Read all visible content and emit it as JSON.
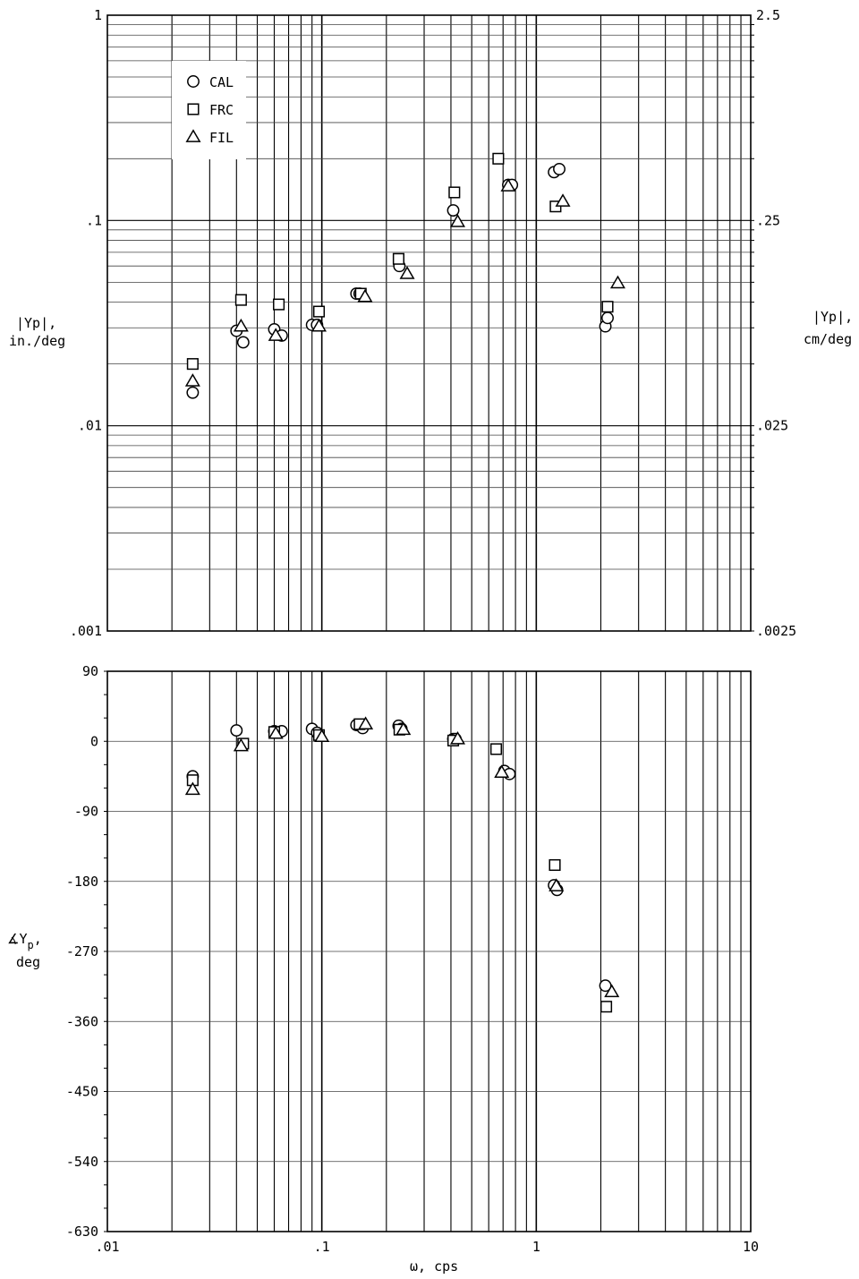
{
  "chart_data": [
    {
      "type": "scatter",
      "panel": "magnitude",
      "xscale": "log",
      "yscale": "log",
      "xlim": [
        0.01,
        10
      ],
      "ylim": [
        0.001,
        1
      ],
      "y2lim": [
        0.0025,
        2.5
      ],
      "grid": true,
      "legend_position": "top-left",
      "ylabel": "|Yp|, in./deg",
      "ylabel_main": "|Yp|,",
      "ylabel_unit": "in./deg",
      "y2label": "|Yp|, cm/deg",
      "y2label_main": "|Yp|,",
      "y2label_unit": "cm/deg",
      "ytick_labels": [
        "1",
        ".1",
        ".01",
        ".001"
      ],
      "y2tick_labels": [
        "2.5",
        ".25",
        ".025",
        ".0025"
      ],
      "series": [
        {
          "name": "CAL",
          "marker": "circle",
          "points": [
            [
              0.025,
              0.0145
            ],
            [
              0.04,
              0.029
            ],
            [
              0.043,
              0.0255
            ],
            [
              0.06,
              0.0295
            ],
            [
              0.065,
              0.0275
            ],
            [
              0.09,
              0.031
            ],
            [
              0.095,
              0.031
            ],
            [
              0.145,
              0.044
            ],
            [
              0.15,
              0.044
            ],
            [
              0.23,
              0.06
            ],
            [
              0.41,
              0.112
            ],
            [
              0.74,
              0.149
            ],
            [
              0.77,
              0.149
            ],
            [
              1.21,
              0.172
            ],
            [
              1.28,
              0.178
            ],
            [
              2.1,
              0.0305
            ],
            [
              2.15,
              0.0335
            ]
          ]
        },
        {
          "name": "FRC",
          "marker": "square",
          "points": [
            [
              0.025,
              0.02
            ],
            [
              0.042,
              0.041
            ],
            [
              0.063,
              0.039
            ],
            [
              0.097,
              0.036
            ],
            [
              0.152,
              0.044
            ],
            [
              0.228,
              0.065
            ],
            [
              0.415,
              0.137
            ],
            [
              0.665,
              0.2
            ],
            [
              1.23,
              0.117
            ],
            [
              2.15,
              0.038
            ]
          ]
        },
        {
          "name": "FIL",
          "marker": "triangle",
          "points": [
            [
              0.025,
              0.0165
            ],
            [
              0.042,
              0.0305
            ],
            [
              0.061,
              0.0275
            ],
            [
              0.097,
              0.0305
            ],
            [
              0.159,
              0.0425
            ],
            [
              0.25,
              0.055
            ],
            [
              0.43,
              0.0985
            ],
            [
              0.74,
              0.147
            ],
            [
              1.33,
              0.124
            ],
            [
              2.4,
              0.0495
            ]
          ]
        }
      ],
      "legend": [
        {
          "marker": "circle",
          "label": "CAL"
        },
        {
          "marker": "square",
          "label": "FRC"
        },
        {
          "marker": "triangle",
          "label": "FIL"
        }
      ]
    },
    {
      "type": "scatter",
      "panel": "phase",
      "xscale": "log",
      "yscale": "linear",
      "xlim": [
        0.01,
        10
      ],
      "ylim": [
        -630,
        90
      ],
      "grid": true,
      "xlabel": "ω, cps",
      "ylabel": "∡Yp, deg",
      "ylabel_main": "∡Y",
      "ylabel_sub": "p",
      "ylabel_unit": "deg",
      "xtick_labels": [
        ".01",
        ".1",
        "1",
        "10"
      ],
      "xtick_values": [
        0.01,
        0.1,
        1,
        10
      ],
      "ytick_labels": [
        "90",
        "0",
        "-90",
        "-180",
        "-270",
        "-360",
        "-450",
        "-540",
        "-630"
      ],
      "ytick_values": [
        90,
        0,
        -90,
        -180,
        -270,
        -360,
        -450,
        -540,
        -630
      ],
      "series": [
        {
          "name": "CAL",
          "marker": "circle",
          "points": [
            [
              0.025,
              -45
            ],
            [
              0.04,
              14
            ],
            [
              0.06,
              13
            ],
            [
              0.065,
              13
            ],
            [
              0.09,
              16
            ],
            [
              0.095,
              11
            ],
            [
              0.145,
              21
            ],
            [
              0.155,
              17
            ],
            [
              0.228,
              20
            ],
            [
              0.235,
              16
            ],
            [
              0.41,
              3
            ],
            [
              0.42,
              3
            ],
            [
              0.71,
              -38
            ],
            [
              0.75,
              -42
            ],
            [
              1.21,
              -185
            ],
            [
              1.25,
              -191
            ],
            [
              2.1,
              -314
            ]
          ]
        },
        {
          "name": "FRC",
          "marker": "square",
          "points": [
            [
              0.025,
              -50
            ],
            [
              0.043,
              -3
            ],
            [
              0.06,
              12
            ],
            [
              0.097,
              8
            ],
            [
              0.15,
              22
            ],
            [
              0.23,
              15
            ],
            [
              0.41,
              1
            ],
            [
              0.65,
              -10
            ],
            [
              1.22,
              -159
            ],
            [
              2.12,
              -341
            ]
          ]
        },
        {
          "name": "FIL",
          "marker": "triangle",
          "points": [
            [
              0.025,
              -62
            ],
            [
              0.042,
              -6
            ],
            [
              0.061,
              10
            ],
            [
              0.1,
              6
            ],
            [
              0.16,
              22
            ],
            [
              0.24,
              15
            ],
            [
              0.43,
              3
            ],
            [
              0.69,
              -40
            ],
            [
              1.24,
              -186
            ],
            [
              2.25,
              -322
            ]
          ]
        }
      ]
    }
  ]
}
